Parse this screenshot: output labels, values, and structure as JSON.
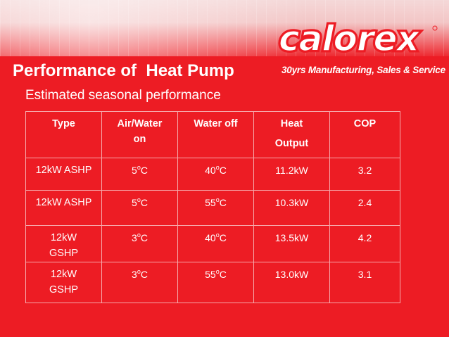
{
  "header": {
    "title": "Performance of  Heat Pump",
    "tagline": "30yrs Manufacturing, Sales & Service",
    "logo_text": "calorex"
  },
  "subtitle": "Estimated seasonal performance",
  "table": {
    "headers": [
      {
        "line1": "Type",
        "line2": ""
      },
      {
        "line1": "Air/Water",
        "line2": "on"
      },
      {
        "line1": "Water off",
        "line2": ""
      },
      {
        "line1": "Heat",
        "line2": "Output"
      },
      {
        "line1": "COP",
        "line2": ""
      }
    ],
    "rows": [
      {
        "type": "12kW ASHP",
        "air_water_on": "5",
        "water_off": "40",
        "heat_output": "11.2kW",
        "cop": "3.2"
      },
      {
        "type": "12kW ASHP",
        "air_water_on": "5",
        "water_off": "55",
        "heat_output": "10.3kW",
        "cop": "2.4"
      },
      {
        "type": "12kW GSHP",
        "air_water_on": "3",
        "water_off": "40",
        "heat_output": "13.5kW",
        "cop": "4.2"
      },
      {
        "type": "12kW GSHP",
        "air_water_on": "3",
        "water_off": "55",
        "heat_output": "13.0kW",
        "cop": "3.1"
      }
    ],
    "degree_sup": "o",
    "temp_unit": "C"
  },
  "colors": {
    "background": "#ed1c24",
    "text": "#ffffff",
    "grid_lines": "#f6a9ab"
  }
}
